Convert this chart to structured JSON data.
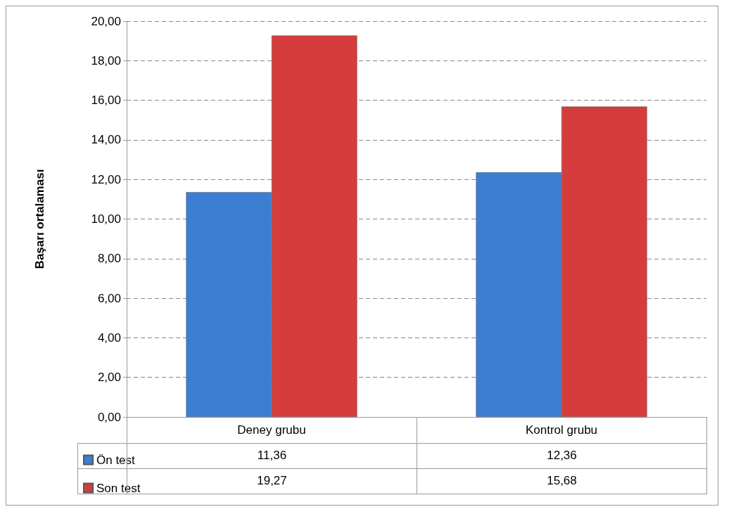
{
  "chart_data": {
    "type": "bar",
    "ylabel": "Başarı ortalaması",
    "categories": [
      "Deney grubu",
      "Kontrol grubu"
    ],
    "series": [
      {
        "name": "Ön test",
        "color": "#3c7fd2",
        "values": [
          11.36,
          12.36
        ],
        "value_labels": [
          "11,36",
          "12,36"
        ]
      },
      {
        "name": "Son test",
        "color": "#d63c3c",
        "values": [
          19.27,
          15.68
        ],
        "value_labels": [
          "19,27",
          "15,68"
        ]
      }
    ],
    "ylim": [
      0,
      20
    ],
    "yticks": [
      {
        "value": 0,
        "label": "0,00"
      },
      {
        "value": 2,
        "label": "2,00"
      },
      {
        "value": 4,
        "label": "4,00"
      },
      {
        "value": 6,
        "label": "6,00"
      },
      {
        "value": 8,
        "label": "8,00"
      },
      {
        "value": 10,
        "label": "10,00"
      },
      {
        "value": 12,
        "label": "12,00"
      },
      {
        "value": 14,
        "label": "14,00"
      },
      {
        "value": 16,
        "label": "16,00"
      },
      {
        "value": 18,
        "label": "18,00"
      },
      {
        "value": 20,
        "label": "20,00"
      }
    ],
    "grid": "y",
    "legend": "bottom left"
  }
}
